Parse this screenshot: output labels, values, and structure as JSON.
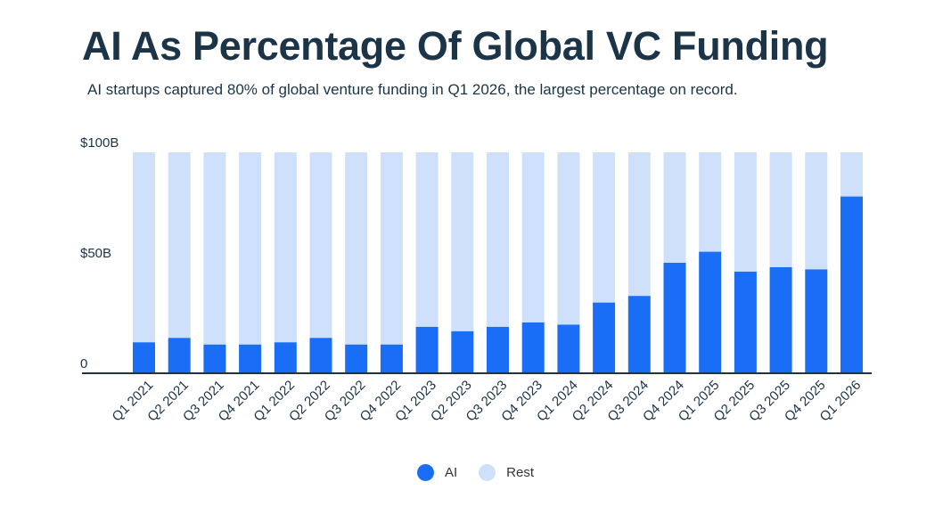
{
  "header": {
    "title": "AI As Percentage Of Global VC Funding",
    "subtitle": "AI startups captured 80% of global venture funding in Q1 2026, the largest percentage on record."
  },
  "legend": {
    "items": [
      {
        "label": "AI",
        "color": "#1a6ef5"
      },
      {
        "label": "Rest",
        "color": "#cfe0fb"
      }
    ]
  },
  "chart_data": {
    "type": "bar",
    "stacked": true,
    "categories": [
      "Q1 2021",
      "Q2 2021",
      "Q3 2021",
      "Q4 2021",
      "Q1 2022",
      "Q2 2022",
      "Q3 2022",
      "Q4 2022",
      "Q1 2023",
      "Q2 2023",
      "Q3 2023",
      "Q4 2023",
      "Q1 2024",
      "Q2 2024",
      "Q3 2024",
      "Q4 2024",
      "Q1 2025",
      "Q2 2025",
      "Q3 2025",
      "Q4 2025",
      "Q1 2026"
    ],
    "series": [
      {
        "name": "AI",
        "color": "#1a6ef5",
        "values": [
          14,
          16,
          13,
          13,
          14,
          16,
          13,
          13,
          21,
          19,
          21,
          23,
          22,
          32,
          35,
          50,
          55,
          46,
          48,
          47,
          80
        ]
      },
      {
        "name": "Rest",
        "color": "#cfe0fb",
        "values": [
          86,
          84,
          87,
          87,
          86,
          84,
          87,
          87,
          79,
          81,
          79,
          77,
          78,
          68,
          65,
          50,
          45,
          54,
          52,
          53,
          20
        ]
      }
    ],
    "ytick_labels": [
      "0",
      "$50B",
      "$100B"
    ],
    "yticks": [
      0,
      50,
      100
    ],
    "ylim": [
      0,
      100
    ],
    "xlabel": "",
    "ylabel": "",
    "grid": false,
    "legend_position": "bottom-center"
  }
}
